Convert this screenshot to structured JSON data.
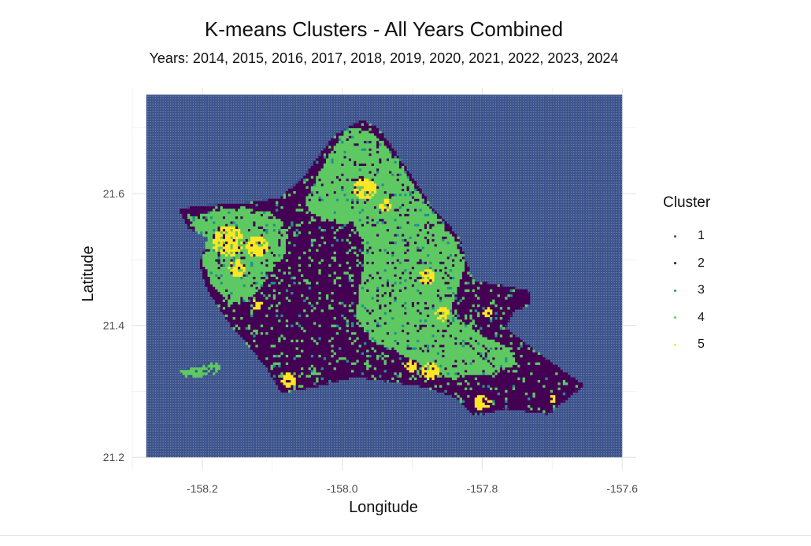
{
  "chart_data": {
    "type": "scatter",
    "title": "K-means Clusters - All Years Combined",
    "subtitle": "Years: 2014, 2015, 2016, 2017, 2018, 2019, 2020, 2021, 2022, 2023, 2024",
    "xlabel": "Longitude",
    "ylabel": "Latitude",
    "xlim": [
      -158.3,
      -157.58
    ],
    "ylim": [
      21.18,
      21.76
    ],
    "xticks": [
      -158.2,
      -158.0,
      -157.8,
      -157.6
    ],
    "xtick_labels": [
      "-158.2",
      "-158.0",
      "-157.8",
      "-157.6"
    ],
    "yticks": [
      21.2,
      21.4,
      21.6
    ],
    "ytick_labels": [
      "21.2",
      "21.4",
      "21.6"
    ],
    "grid": true,
    "legend_position": "right",
    "legend_title": "Cluster",
    "grid_extent": {
      "lon_min": -158.28,
      "lon_max": -157.6,
      "lat_min": 21.2,
      "lat_max": 21.75
    },
    "background_cluster": "1",
    "series": [
      {
        "name": "1",
        "color": "#3b528b",
        "description": "ocean grid points"
      },
      {
        "name": "2",
        "color": "#440154",
        "description": "lowland / coastal land"
      },
      {
        "name": "3",
        "color": "#21908c"
      },
      {
        "name": "4",
        "color": "#5ec962",
        "description": "mountain ridges"
      },
      {
        "name": "5",
        "color": "#fde725",
        "description": "scattered patches"
      }
    ]
  }
}
